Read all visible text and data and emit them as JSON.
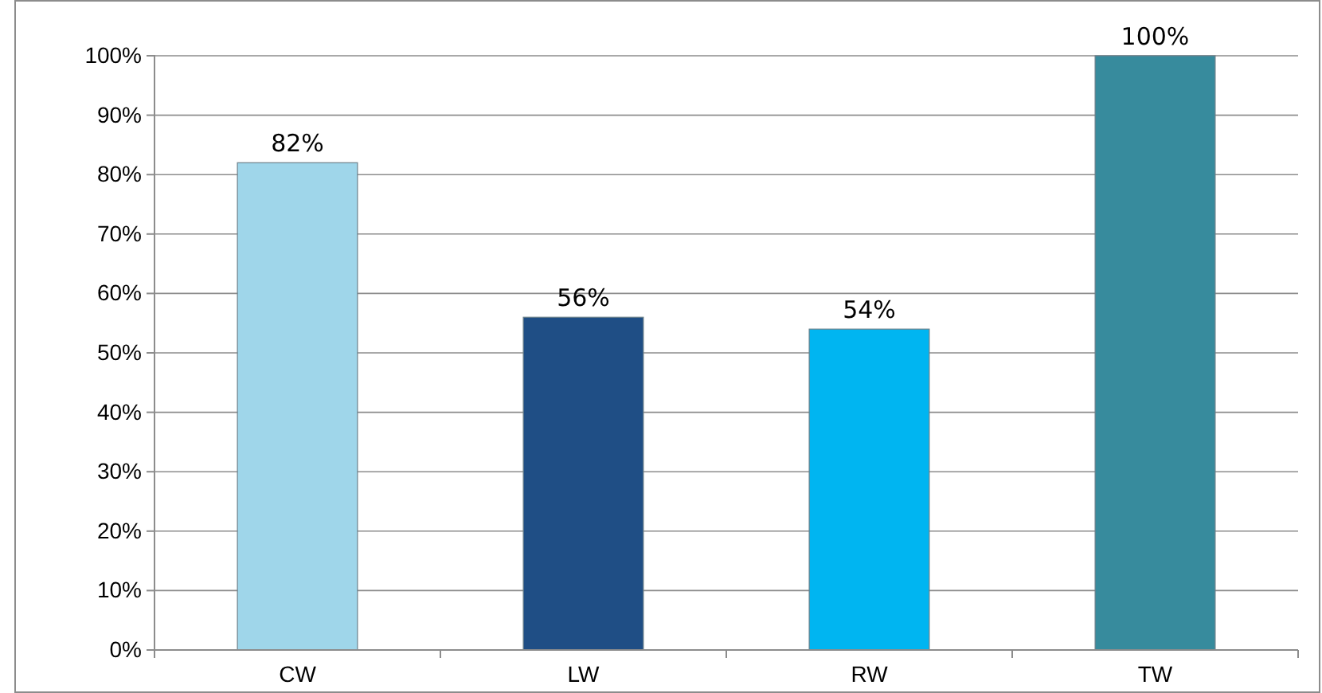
{
  "chart_data": {
    "type": "bar",
    "categories": [
      "CW",
      "LW",
      "RW",
      "TW"
    ],
    "values": [
      82,
      56,
      54,
      100
    ],
    "colors": [
      "#9fd6ea",
      "#1f4e85",
      "#00b5f1",
      "#378b9d"
    ],
    "value_labels": [
      "82%",
      "56%",
      "54%",
      "100%"
    ],
    "ylim": [
      0,
      100
    ],
    "yticks": [
      {
        "value": 0,
        "label": "0%"
      },
      {
        "value": 10,
        "label": "10%"
      },
      {
        "value": 20,
        "label": "20%"
      },
      {
        "value": 30,
        "label": "30%"
      },
      {
        "value": 40,
        "label": "40%"
      },
      {
        "value": 50,
        "label": "50%"
      },
      {
        "value": 60,
        "label": "60%"
      },
      {
        "value": 70,
        "label": "70%"
      },
      {
        "value": 80,
        "label": "80%"
      },
      {
        "value": 90,
        "label": "90%"
      },
      {
        "value": 100,
        "label": "100%"
      }
    ],
    "grid": "y"
  }
}
